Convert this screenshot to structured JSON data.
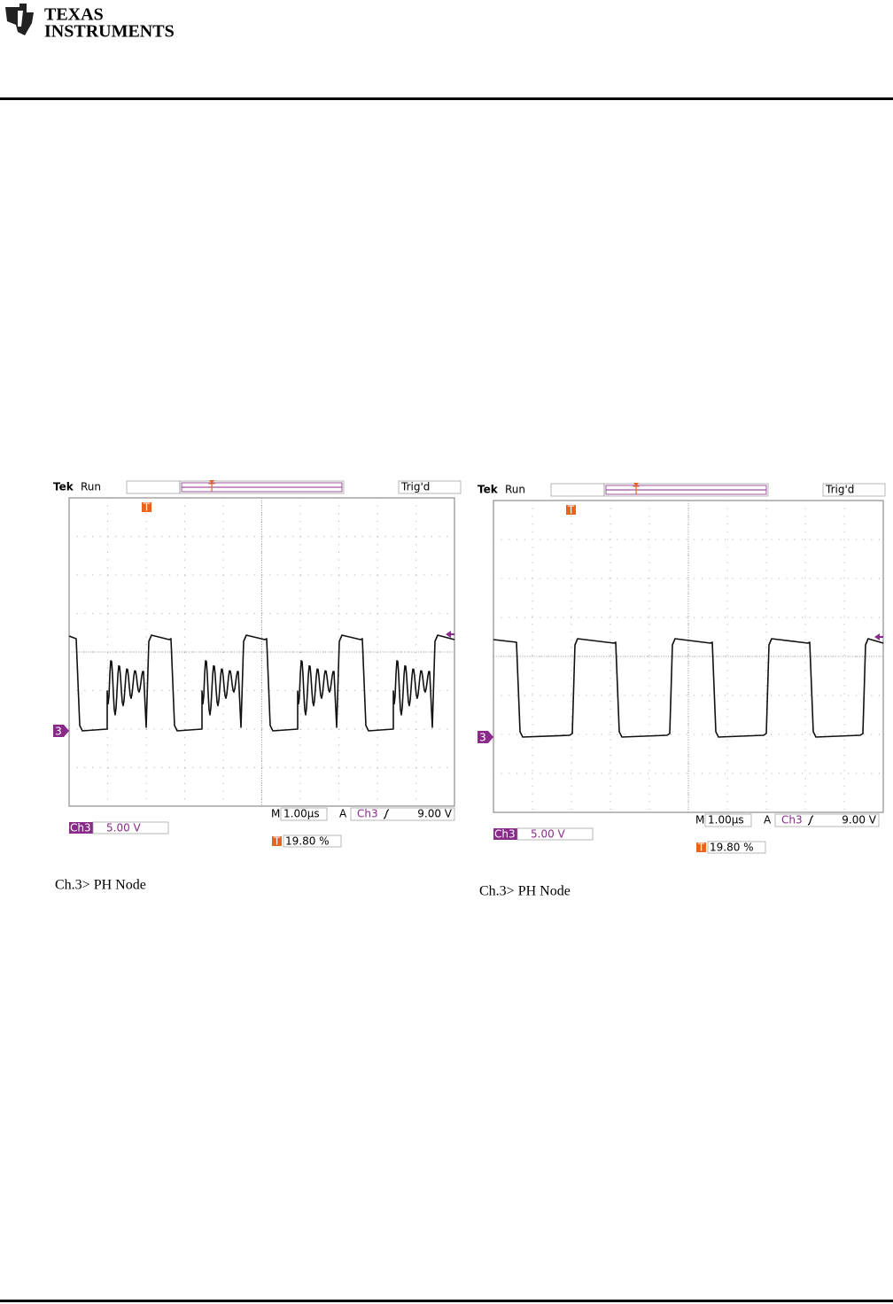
{
  "header": {
    "logo_line1": "TEXAS",
    "logo_line2": "INSTRUMENTS"
  },
  "figures": [
    {
      "scope": {
        "brand": "Tek",
        "state": "Run",
        "trigger_status": "Trig'd",
        "timebase_label": "M",
        "timebase": "1.00µs",
        "trigger_label": "A",
        "trigger_channel": "Ch3",
        "trigger_level": "9.00 V",
        "channel": "Ch3",
        "channel_scale": "5.00 V",
        "trigger_position": "19.80 %",
        "channel_marker": "3",
        "trigger_marker": "T"
      },
      "caption": "Ch.3> PH Node"
    },
    {
      "scope": {
        "brand": "Tek",
        "state": "Run",
        "trigger_status": "Trig'd",
        "timebase_label": "M",
        "timebase": "1.00µs",
        "trigger_label": "A",
        "trigger_channel": "Ch3",
        "trigger_level": "9.00 V",
        "channel": "Ch3",
        "channel_scale": "5.00 V",
        "trigger_position": "19.80 %",
        "channel_marker": "3",
        "trigger_marker": "T"
      },
      "caption": "Ch.3> PH Node"
    }
  ]
}
